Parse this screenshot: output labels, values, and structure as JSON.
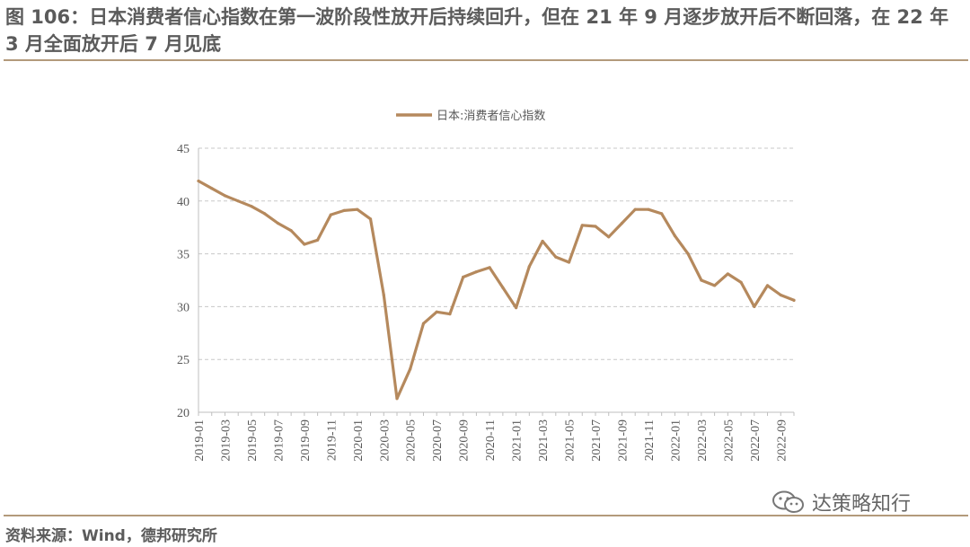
{
  "title": "图 106：日本消费者信心指数在第一波阶段性放开后持续回升，但在 21 年 9 月逐步放开后不断回落，在 22 年 3 月全面放开后 7 月见底",
  "source": "资料来源：Wind，德邦研究所",
  "watermark": "达策略知行",
  "colors": {
    "line": "#b5895d",
    "grid": "#c8c8c8",
    "rule": "#b39a7b"
  },
  "chart_data": {
    "type": "line",
    "title": "",
    "xlabel": "",
    "ylabel": "",
    "ylim": [
      20,
      45
    ],
    "yticks": [
      20,
      25,
      30,
      35,
      40,
      45
    ],
    "grid": "horizontal dashed",
    "legend_position": "top-center",
    "x_tick_labels": [
      "2019-01",
      "2019-03",
      "2019-05",
      "2019-07",
      "2019-09",
      "2019-11",
      "2020-01",
      "2020-03",
      "2020-05",
      "2020-07",
      "2020-09",
      "2020-11",
      "2021-01",
      "2021-03",
      "2021-05",
      "2021-07",
      "2021-09",
      "2021-11",
      "2022-01",
      "2022-03",
      "2022-05",
      "2022-07",
      "2022-09"
    ],
    "series": [
      {
        "name": "日本:消费者信心指数",
        "x": [
          "2019-01",
          "2019-02",
          "2019-03",
          "2019-04",
          "2019-05",
          "2019-06",
          "2019-07",
          "2019-08",
          "2019-09",
          "2019-10",
          "2019-11",
          "2019-12",
          "2020-01",
          "2020-02",
          "2020-03",
          "2020-04",
          "2020-05",
          "2020-06",
          "2020-07",
          "2020-08",
          "2020-09",
          "2020-10",
          "2020-11",
          "2020-12",
          "2021-01",
          "2021-02",
          "2021-03",
          "2021-04",
          "2021-05",
          "2021-06",
          "2021-07",
          "2021-08",
          "2021-09",
          "2021-10",
          "2021-11",
          "2021-12",
          "2022-01",
          "2022-02",
          "2022-03",
          "2022-04",
          "2022-05",
          "2022-06",
          "2022-07",
          "2022-08",
          "2022-09",
          "2022-10"
        ],
        "values": [
          41.9,
          41.2,
          40.5,
          40.0,
          39.5,
          38.8,
          37.9,
          37.2,
          35.9,
          36.3,
          38.7,
          39.1,
          39.2,
          38.3,
          31.1,
          21.3,
          24.1,
          28.4,
          29.5,
          29.3,
          32.8,
          33.3,
          33.7,
          31.8,
          29.9,
          33.8,
          36.2,
          34.7,
          34.2,
          37.7,
          37.6,
          36.6,
          37.9,
          39.2,
          39.2,
          38.8,
          36.7,
          35.0,
          32.5,
          32.0,
          33.1,
          32.3,
          30.0,
          32.0,
          31.1,
          30.6
        ]
      }
    ]
  }
}
